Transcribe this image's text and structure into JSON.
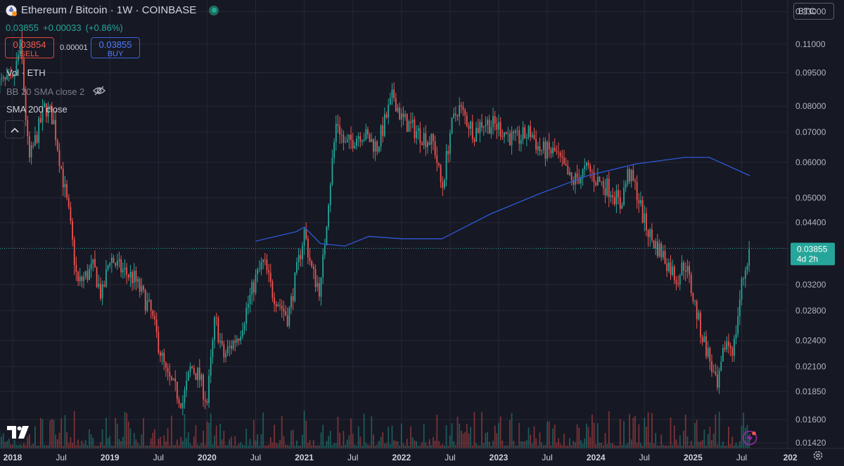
{
  "header": {
    "title": "Ethereum / Bitcoin · 1W · COINBASE",
    "last_price": "0.03855",
    "change_abs": "+0.00033",
    "change_pct": "(+0.86%)"
  },
  "trade": {
    "sell_price": "0.03854",
    "sell_label": "SELL",
    "spread": "0.00001",
    "buy_price": "0.03855",
    "buy_label": "BUY"
  },
  "indicators": {
    "volume": "Vol · ETH",
    "bb": "BB 20 SMA close 2",
    "sma": "SMA 200 close"
  },
  "currency_button": "BTC",
  "price_tag": {
    "price": "0.03855",
    "countdown": "4d 2h"
  },
  "colors": {
    "background": "#161823",
    "up": "#26a69a",
    "down": "#ef5350",
    "sma": "#2e59d9",
    "price_tag": "#26a69a"
  },
  "icons": [
    "sym-icon",
    "live-dot-icon",
    "eye-off-icon",
    "chevron-up-icon",
    "tradingview-logo-icon",
    "bolt-icon",
    "gear-icon"
  ],
  "chart_data": {
    "type": "candlestick",
    "yscale": "log",
    "ylim": [
      0.0138,
      0.138
    ],
    "y_ticks": [
      "0.13000",
      "0.11000",
      "0.09500",
      "0.08000",
      "0.07000",
      "0.06000",
      "0.05000",
      "0.04400",
      "0.03855",
      "0.03200",
      "0.02800",
      "0.02400",
      "0.02100",
      "0.01850",
      "0.01600",
      "0.01420"
    ],
    "x_ticks": [
      "2018",
      "Jul",
      "2019",
      "Jul",
      "2020",
      "Jul",
      "2021",
      "Jul",
      "2022",
      "Jul",
      "2023",
      "Jul",
      "2024",
      "Jul",
      "2025",
      "Jul",
      "202"
    ],
    "close_path": [
      {
        "x": "2018-01",
        "y": 0.09
      },
      {
        "x": "2018-02",
        "y": 0.11
      },
      {
        "x": "2018-03",
        "y": 0.06
      },
      {
        "x": "2018-05",
        "y": 0.08
      },
      {
        "x": "2018-06",
        "y": 0.075
      },
      {
        "x": "2018-08",
        "y": 0.045
      },
      {
        "x": "2018-09",
        "y": 0.032
      },
      {
        "x": "2018-11",
        "y": 0.035
      },
      {
        "x": "2018-12",
        "y": 0.03
      },
      {
        "x": "2019-01",
        "y": 0.037
      },
      {
        "x": "2019-02",
        "y": 0.035
      },
      {
        "x": "2019-04",
        "y": 0.033
      },
      {
        "x": "2019-06",
        "y": 0.028
      },
      {
        "x": "2019-08",
        "y": 0.02
      },
      {
        "x": "2019-10",
        "y": 0.0175
      },
      {
        "x": "2019-11",
        "y": 0.021
      },
      {
        "x": "2019-12",
        "y": 0.02
      },
      {
        "x": "2020-01",
        "y": 0.0175
      },
      {
        "x": "2020-02",
        "y": 0.027
      },
      {
        "x": "2020-03",
        "y": 0.022
      },
      {
        "x": "2020-05",
        "y": 0.025
      },
      {
        "x": "2020-07",
        "y": 0.033
      },
      {
        "x": "2020-08",
        "y": 0.036
      },
      {
        "x": "2020-09",
        "y": 0.031
      },
      {
        "x": "2020-11",
        "y": 0.027
      },
      {
        "x": "2021-01",
        "y": 0.042
      },
      {
        "x": "2021-02",
        "y": 0.034
      },
      {
        "x": "2021-03",
        "y": 0.031
      },
      {
        "x": "2021-04",
        "y": 0.05
      },
      {
        "x": "2021-05",
        "y": 0.075
      },
      {
        "x": "2021-06",
        "y": 0.065
      },
      {
        "x": "2021-08",
        "y": 0.07
      },
      {
        "x": "2021-10",
        "y": 0.065
      },
      {
        "x": "2021-12",
        "y": 0.085
      },
      {
        "x": "2022-01",
        "y": 0.075
      },
      {
        "x": "2022-03",
        "y": 0.07
      },
      {
        "x": "2022-05",
        "y": 0.066
      },
      {
        "x": "2022-06",
        "y": 0.052
      },
      {
        "x": "2022-07",
        "y": 0.07
      },
      {
        "x": "2022-08",
        "y": 0.08
      },
      {
        "x": "2022-10",
        "y": 0.07
      },
      {
        "x": "2022-11",
        "y": 0.074
      },
      {
        "x": "2023-01",
        "y": 0.072
      },
      {
        "x": "2023-03",
        "y": 0.067
      },
      {
        "x": "2023-05",
        "y": 0.07
      },
      {
        "x": "2023-06",
        "y": 0.064
      },
      {
        "x": "2023-08",
        "y": 0.063
      },
      {
        "x": "2023-10",
        "y": 0.054
      },
      {
        "x": "2023-12",
        "y": 0.058
      },
      {
        "x": "2024-01",
        "y": 0.055
      },
      {
        "x": "2024-03",
        "y": 0.052
      },
      {
        "x": "2024-04",
        "y": 0.048
      },
      {
        "x": "2024-05",
        "y": 0.057
      },
      {
        "x": "2024-06",
        "y": 0.052
      },
      {
        "x": "2024-07",
        "y": 0.044
      },
      {
        "x": "2024-08",
        "y": 0.04
      },
      {
        "x": "2024-09",
        "y": 0.038
      },
      {
        "x": "2024-11",
        "y": 0.033
      },
      {
        "x": "2024-12",
        "y": 0.036
      },
      {
        "x": "2025-01",
        "y": 0.03
      },
      {
        "x": "2025-02",
        "y": 0.025
      },
      {
        "x": "2025-03",
        "y": 0.022
      },
      {
        "x": "2025-04",
        "y": 0.0185
      },
      {
        "x": "2025-05",
        "y": 0.024
      },
      {
        "x": "2025-06",
        "y": 0.023
      },
      {
        "x": "2025-07",
        "y": 0.032
      },
      {
        "x": "2025-08",
        "y": 0.03855
      }
    ],
    "sma200": [
      {
        "x": "2020-07",
        "y": 0.04
      },
      {
        "x": "2020-12",
        "y": 0.042
      },
      {
        "x": "2021-01",
        "y": 0.043
      },
      {
        "x": "2021-03",
        "y": 0.0395
      },
      {
        "x": "2021-06",
        "y": 0.039
      },
      {
        "x": "2021-09",
        "y": 0.041
      },
      {
        "x": "2022-01",
        "y": 0.0405
      },
      {
        "x": "2022-06",
        "y": 0.0405
      },
      {
        "x": "2022-12",
        "y": 0.046
      },
      {
        "x": "2023-06",
        "y": 0.051
      },
      {
        "x": "2023-12",
        "y": 0.056
      },
      {
        "x": "2024-06",
        "y": 0.0595
      },
      {
        "x": "2024-12",
        "y": 0.0615
      },
      {
        "x": "2025-03",
        "y": 0.0615
      },
      {
        "x": "2025-08",
        "y": 0.056
      }
    ]
  }
}
